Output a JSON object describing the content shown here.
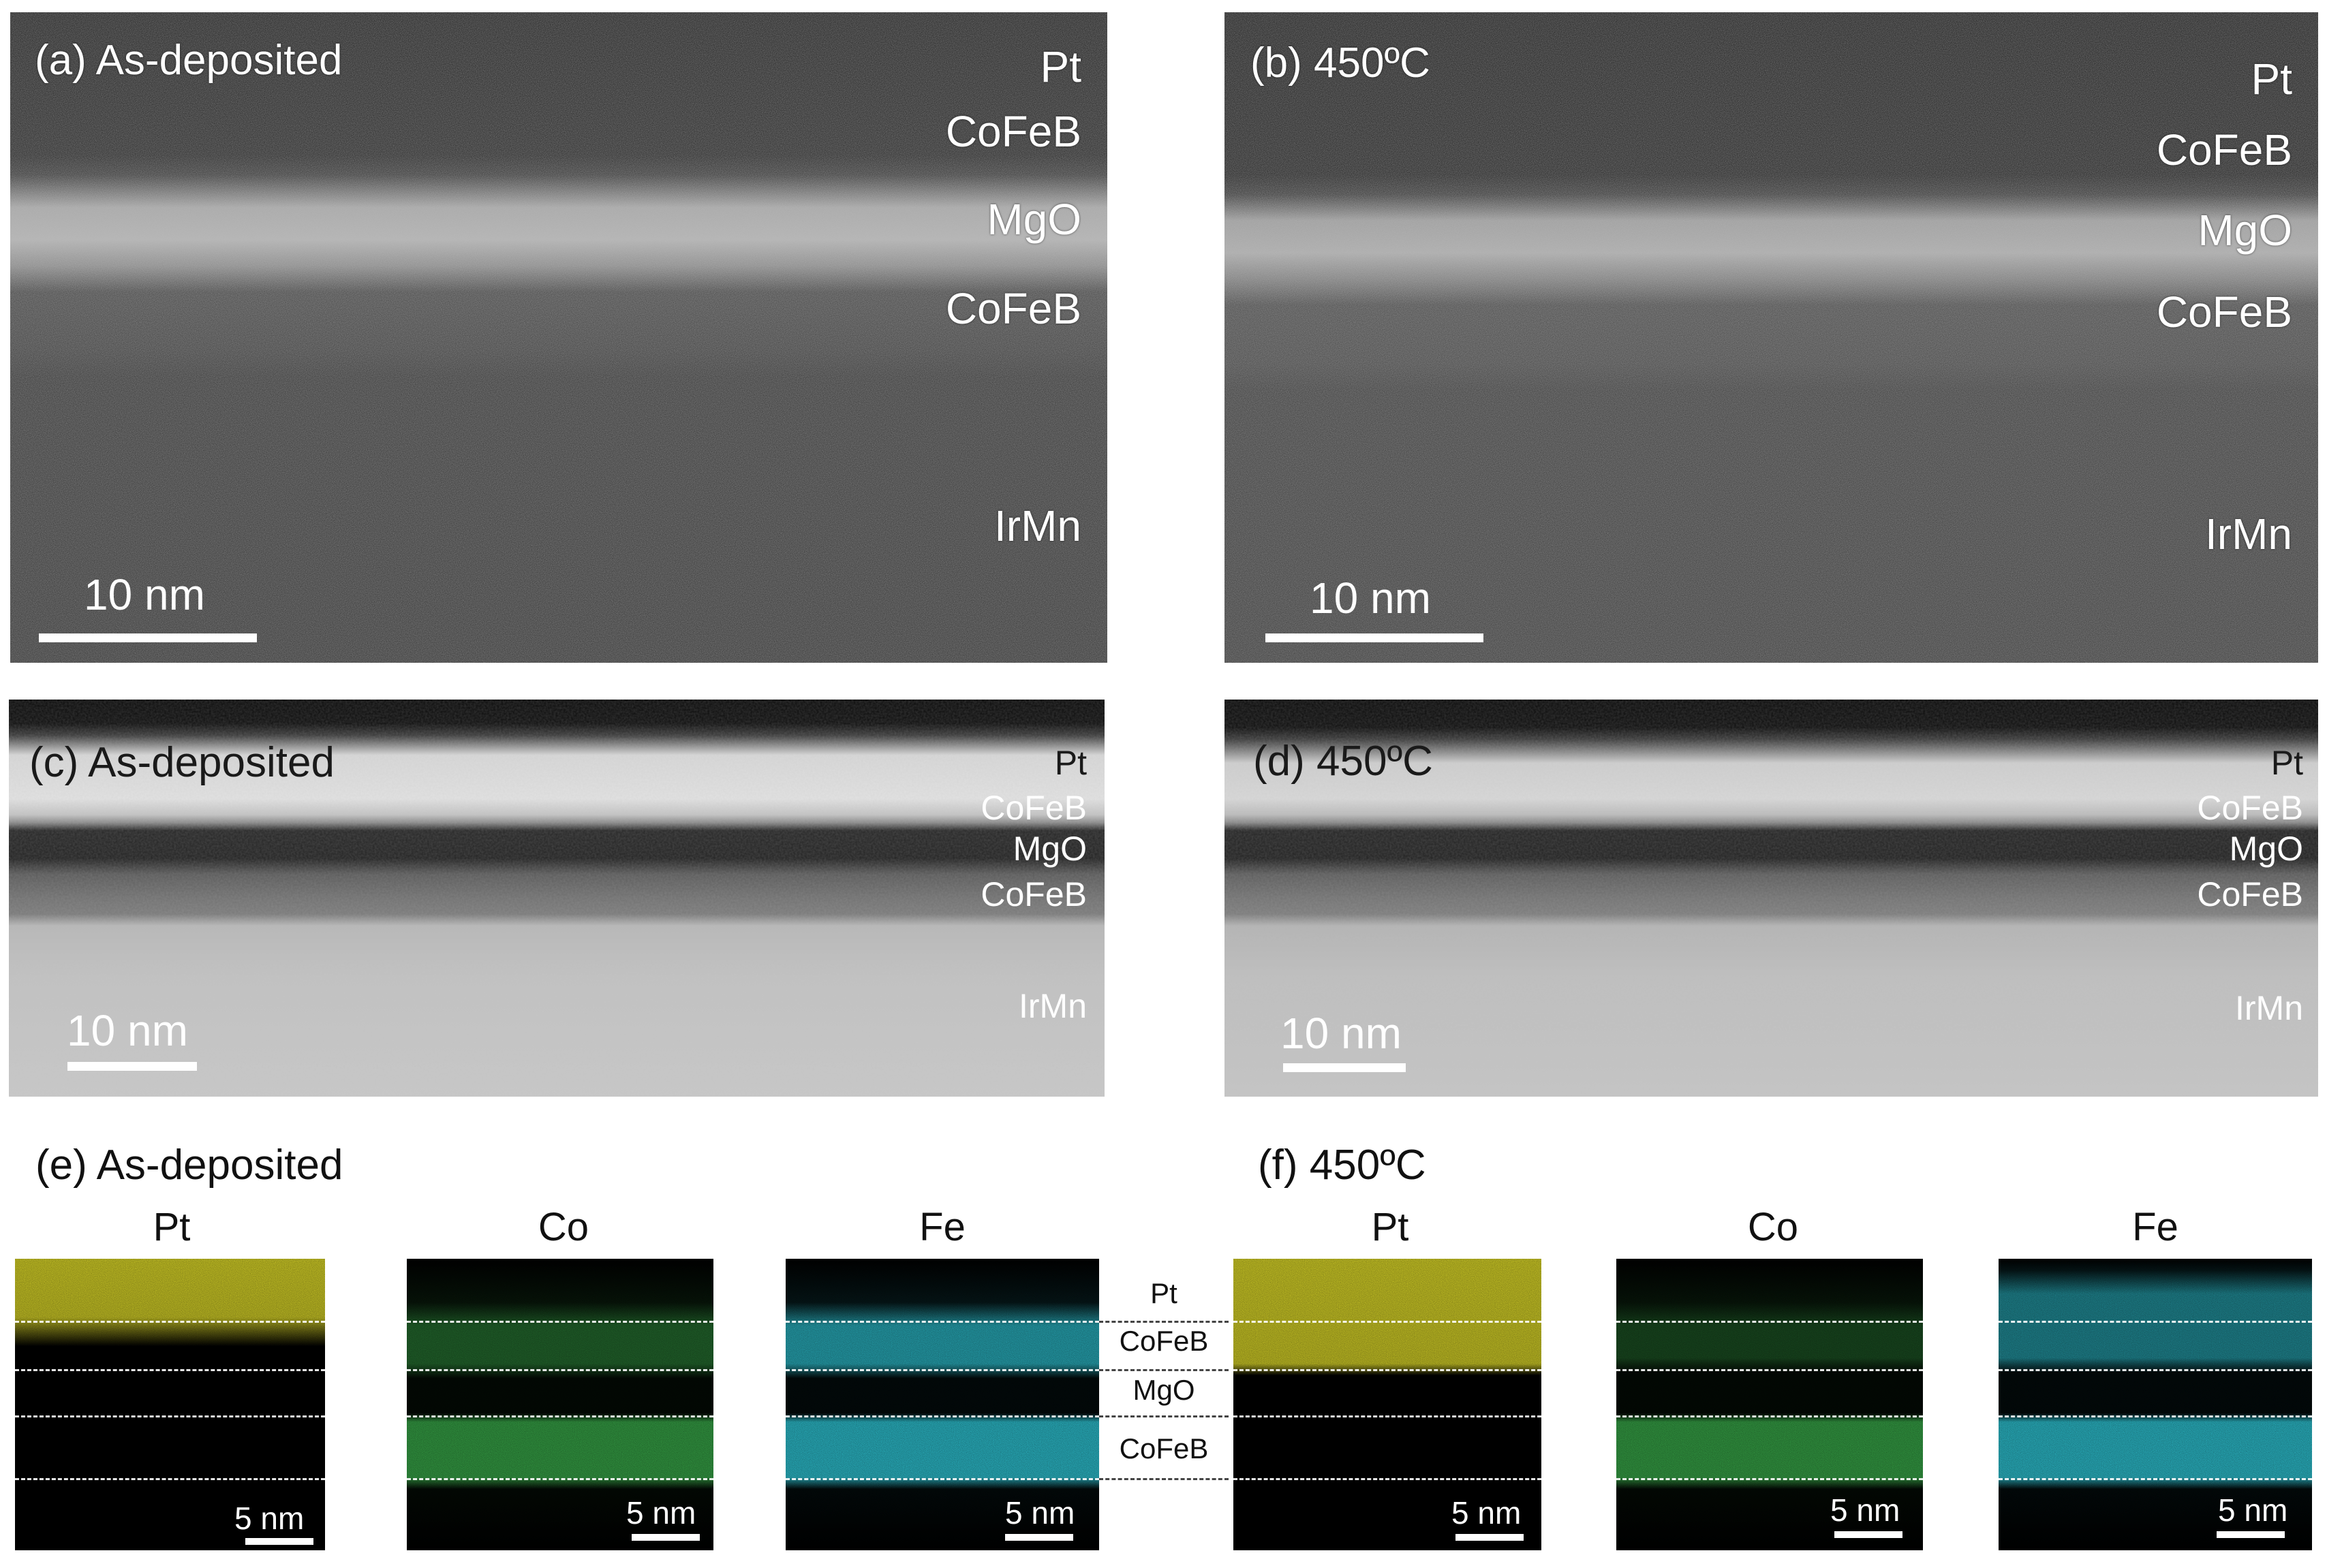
{
  "colors": {
    "pt_map": "#e6e22a",
    "co_map": "#3fbf52",
    "fe_map": "#2ec8d8",
    "background": "#ffffff"
  },
  "panels": {
    "a": {
      "caption": "(a) As-deposited",
      "layers": [
        "Pt",
        "CoFeB",
        "MgO",
        "CoFeB",
        "IrMn"
      ],
      "scale": "10 nm"
    },
    "b": {
      "caption": "(b) 450ºC",
      "layers": [
        "Pt",
        "CoFeB",
        "MgO",
        "CoFeB",
        "IrMn"
      ],
      "scale": "10 nm"
    },
    "c": {
      "caption": "(c) As-deposited",
      "layers": [
        "Pt",
        "CoFeB",
        "MgO",
        "CoFeB",
        "IrMn"
      ],
      "scale": "10 nm"
    },
    "d": {
      "caption": "(d) 450ºC",
      "layers": [
        "Pt",
        "CoFeB",
        "MgO",
        "CoFeB",
        "IrMn"
      ],
      "scale": "10 nm"
    },
    "e": {
      "caption": "(e) As-deposited",
      "maps": [
        {
          "element": "Pt",
          "scale": "5 nm"
        },
        {
          "element": "Co",
          "scale": "5 nm"
        },
        {
          "element": "Fe",
          "scale": "5 nm"
        }
      ]
    },
    "f": {
      "caption": "(f) 450ºC",
      "maps": [
        {
          "element": "Pt",
          "scale": "5 nm"
        },
        {
          "element": "Co",
          "scale": "5 nm"
        },
        {
          "element": "Fe",
          "scale": "5 nm"
        }
      ]
    },
    "legend": [
      "Pt",
      "CoFeB",
      "MgO",
      "CoFeB"
    ]
  }
}
